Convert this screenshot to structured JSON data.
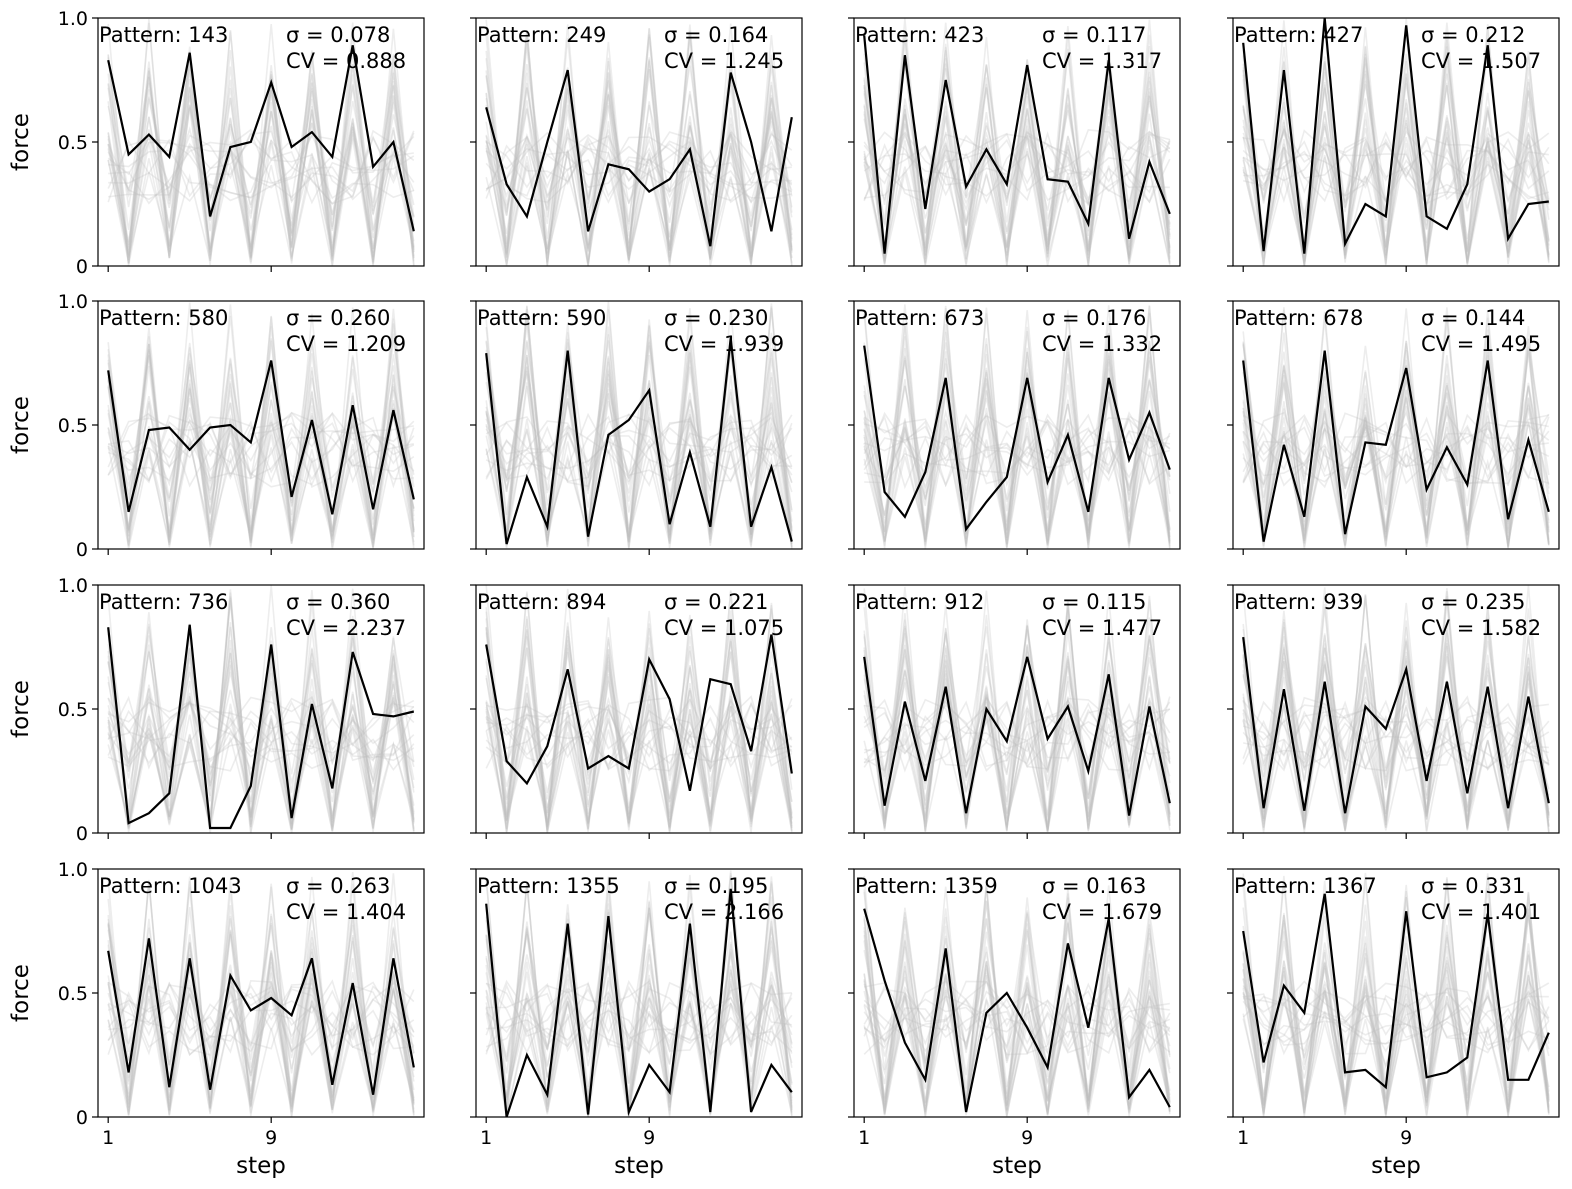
{
  "chart_data": {
    "type": "line",
    "layout": {
      "rows": 4,
      "cols": 4
    },
    "xlabel": "step",
    "ylabel": "force",
    "ylim": [
      0,
      1
    ],
    "yticks": [
      0,
      0.5,
      1.0
    ],
    "ytick_labels": [
      "0",
      "0.5",
      "1.0"
    ],
    "xlim": [
      0.5,
      16.5
    ],
    "xticks": [
      1,
      9
    ],
    "xtick_labels": [
      "1",
      "9"
    ],
    "steps": [
      1,
      2,
      3,
      4,
      5,
      6,
      7,
      8,
      9,
      10,
      11,
      12,
      13,
      14,
      15,
      16
    ],
    "colors": {
      "highlight": "#000000",
      "background": "#bdbdbd"
    },
    "panels": [
      {
        "pattern_label": "Pattern: 143",
        "sigma_label": "σ = 0.078",
        "cv_label": "CV = 0.888",
        "values": [
          0.83,
          0.45,
          0.53,
          0.44,
          0.86,
          0.2,
          0.48,
          0.5,
          0.74,
          0.48,
          0.54,
          0.44,
          0.89,
          0.4,
          0.5,
          0.14
        ]
      },
      {
        "pattern_label": "Pattern: 249",
        "sigma_label": "σ = 0.164",
        "cv_label": "CV = 1.245",
        "values": [
          0.64,
          0.33,
          0.2,
          0.5,
          0.79,
          0.14,
          0.41,
          0.39,
          0.3,
          0.35,
          0.47,
          0.08,
          0.78,
          0.5,
          0.14,
          0.6
        ]
      },
      {
        "pattern_label": "Pattern: 423",
        "sigma_label": "σ = 0.117",
        "cv_label": "CV = 1.317",
        "values": [
          0.93,
          0.05,
          0.85,
          0.23,
          0.75,
          0.32,
          0.47,
          0.33,
          0.81,
          0.35,
          0.34,
          0.17,
          0.83,
          0.11,
          0.42,
          0.21
        ]
      },
      {
        "pattern_label": "Pattern: 427",
        "sigma_label": "σ = 0.212",
        "cv_label": "CV = 1.507",
        "values": [
          0.9,
          0.06,
          0.79,
          0.05,
          1.0,
          0.09,
          0.25,
          0.2,
          0.97,
          0.2,
          0.15,
          0.33,
          0.89,
          0.11,
          0.25,
          0.26
        ]
      },
      {
        "pattern_label": "Pattern: 580",
        "sigma_label": "σ = 0.260",
        "cv_label": "CV = 1.209",
        "values": [
          0.72,
          0.15,
          0.48,
          0.49,
          0.4,
          0.49,
          0.5,
          0.43,
          0.76,
          0.21,
          0.52,
          0.14,
          0.58,
          0.16,
          0.56,
          0.2
        ]
      },
      {
        "pattern_label": "Pattern: 590",
        "sigma_label": "σ = 0.230",
        "cv_label": "CV = 1.939",
        "values": [
          0.79,
          0.02,
          0.29,
          0.09,
          0.8,
          0.05,
          0.46,
          0.52,
          0.64,
          0.1,
          0.39,
          0.09,
          0.85,
          0.09,
          0.33,
          0.03
        ]
      },
      {
        "pattern_label": "Pattern: 673",
        "sigma_label": "σ = 0.176",
        "cv_label": "CV = 1.332",
        "values": [
          0.82,
          0.23,
          0.13,
          0.31,
          0.69,
          0.08,
          0.19,
          0.29,
          0.69,
          0.27,
          0.46,
          0.15,
          0.69,
          0.36,
          0.55,
          0.32
        ]
      },
      {
        "pattern_label": "Pattern: 678",
        "sigma_label": "σ = 0.144",
        "cv_label": "CV = 1.495",
        "values": [
          0.76,
          0.03,
          0.42,
          0.13,
          0.8,
          0.06,
          0.43,
          0.42,
          0.73,
          0.24,
          0.41,
          0.26,
          0.76,
          0.12,
          0.44,
          0.15
        ]
      },
      {
        "pattern_label": "Pattern: 736",
        "sigma_label": "σ = 0.360",
        "cv_label": "CV = 2.237",
        "values": [
          0.83,
          0.04,
          0.08,
          0.16,
          0.84,
          0.02,
          0.02,
          0.19,
          0.76,
          0.06,
          0.52,
          0.18,
          0.73,
          0.48,
          0.47,
          0.49
        ]
      },
      {
        "pattern_label": "Pattern: 894",
        "sigma_label": "σ = 0.221",
        "cv_label": "CV = 1.075",
        "values": [
          0.76,
          0.29,
          0.2,
          0.35,
          0.66,
          0.26,
          0.31,
          0.26,
          0.7,
          0.54,
          0.17,
          0.62,
          0.6,
          0.33,
          0.8,
          0.24
        ]
      },
      {
        "pattern_label": "Pattern: 912",
        "sigma_label": "σ = 0.115",
        "cv_label": "CV = 1.477",
        "values": [
          0.71,
          0.11,
          0.53,
          0.21,
          0.59,
          0.08,
          0.5,
          0.37,
          0.71,
          0.38,
          0.51,
          0.25,
          0.64,
          0.07,
          0.51,
          0.12
        ]
      },
      {
        "pattern_label": "Pattern: 939",
        "sigma_label": "σ = 0.235",
        "cv_label": "CV = 1.582",
        "values": [
          0.79,
          0.1,
          0.58,
          0.09,
          0.61,
          0.08,
          0.51,
          0.42,
          0.66,
          0.21,
          0.61,
          0.16,
          0.59,
          0.1,
          0.55,
          0.12
        ]
      },
      {
        "pattern_label": "Pattern: 1043",
        "sigma_label": "σ = 0.263",
        "cv_label": "CV = 1.404",
        "values": [
          0.67,
          0.18,
          0.72,
          0.12,
          0.64,
          0.11,
          0.57,
          0.43,
          0.48,
          0.41,
          0.64,
          0.13,
          0.54,
          0.09,
          0.64,
          0.2
        ]
      },
      {
        "pattern_label": "Pattern: 1355",
        "sigma_label": "σ = 0.195",
        "cv_label": "CV = 2.166",
        "values": [
          0.86,
          0.0,
          0.25,
          0.09,
          0.78,
          0.01,
          0.81,
          0.02,
          0.21,
          0.1,
          0.78,
          0.02,
          0.92,
          0.02,
          0.21,
          0.1
        ]
      },
      {
        "pattern_label": "Pattern: 1359",
        "sigma_label": "σ = 0.163",
        "cv_label": "CV = 1.679",
        "values": [
          0.84,
          0.55,
          0.3,
          0.15,
          0.68,
          0.02,
          0.42,
          0.5,
          0.36,
          0.2,
          0.7,
          0.36,
          0.8,
          0.08,
          0.19,
          0.04
        ]
      },
      {
        "pattern_label": "Pattern: 1367",
        "sigma_label": "σ = 0.331",
        "cv_label": "CV = 1.401",
        "values": [
          0.75,
          0.22,
          0.53,
          0.42,
          0.9,
          0.18,
          0.19,
          0.12,
          0.83,
          0.16,
          0.18,
          0.24,
          0.82,
          0.15,
          0.15,
          0.34
        ]
      }
    ]
  }
}
